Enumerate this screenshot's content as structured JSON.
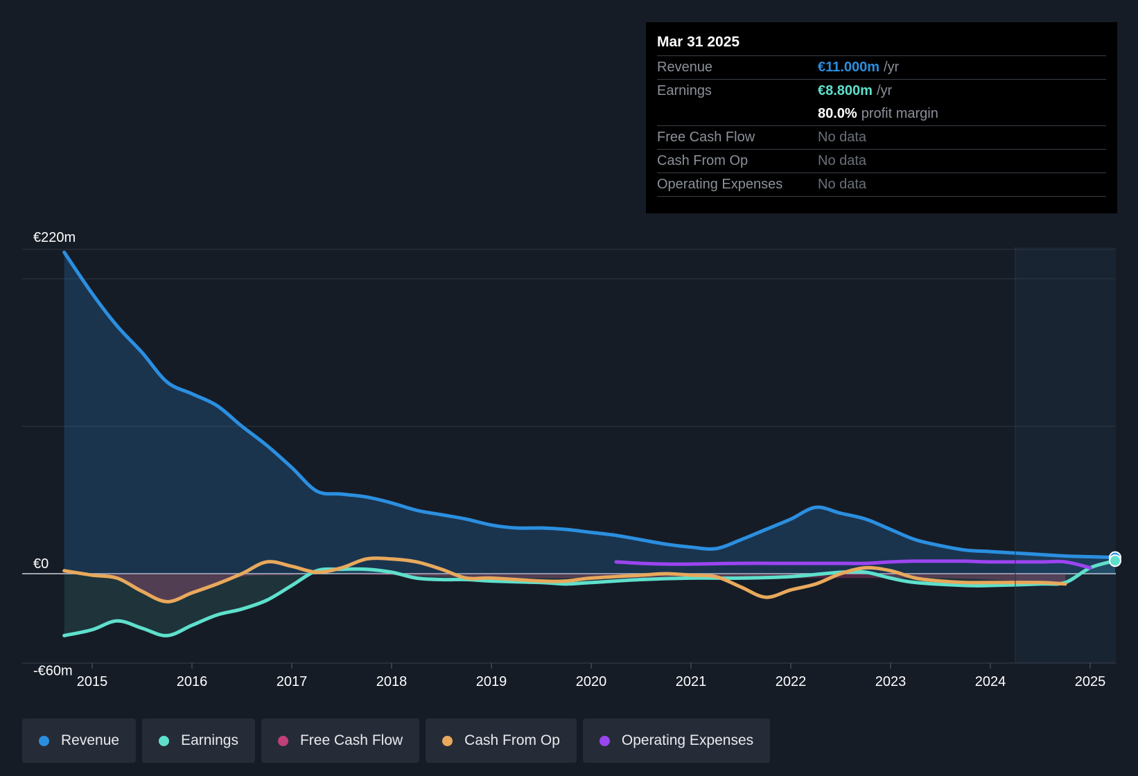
{
  "tooltip": {
    "date": "Mar 31 2025",
    "rows": {
      "revenue": {
        "label": "Revenue",
        "value": "€11.000m",
        "unit": "/yr"
      },
      "earnings": {
        "label": "Earnings",
        "value": "€8.800m",
        "unit": "/yr"
      },
      "margin": {
        "value": "80.0%",
        "unit": "profit margin"
      },
      "fcf": {
        "label": "Free Cash Flow",
        "value": "No data"
      },
      "cfo": {
        "label": "Cash From Op",
        "value": "No data"
      },
      "opex": {
        "label": "Operating Expenses",
        "value": "No data"
      }
    }
  },
  "legend": [
    {
      "label": "Revenue",
      "color": "#2b8fe0"
    },
    {
      "label": "Earnings",
      "color": "#5ee0cc"
    },
    {
      "label": "Free Cash Flow",
      "color": "#c0407a"
    },
    {
      "label": "Cash From Op",
      "color": "#e8a95c"
    },
    {
      "label": "Operating Expenses",
      "color": "#9b45f0"
    }
  ],
  "chart_data": {
    "type": "line",
    "title": "",
    "currency": "€",
    "ylim": [
      -60,
      220
    ],
    "y_tick_labels": [
      {
        "value": 220,
        "label": "€220m"
      },
      {
        "value": 0,
        "label": "€0"
      },
      {
        "value": -60,
        "label": "-€60m"
      }
    ],
    "xlim": [
      2014.5,
      2025.25
    ],
    "x_ticks": [
      2015,
      2016,
      2017,
      2018,
      2019,
      2020,
      2021,
      2022,
      2023,
      2024,
      2025
    ],
    "forecast_region_start": 2024.25,
    "series": [
      {
        "name": "Revenue",
        "color": "#2b8fe0",
        "fill": true,
        "points": [
          [
            2014.72,
            218
          ],
          [
            2015,
            190
          ],
          [
            2015.25,
            168
          ],
          [
            2015.5,
            150
          ],
          [
            2015.75,
            130
          ],
          [
            2016,
            122
          ],
          [
            2016.25,
            114
          ],
          [
            2016.5,
            100
          ],
          [
            2016.75,
            87
          ],
          [
            2017,
            72
          ],
          [
            2017.25,
            56
          ],
          [
            2017.5,
            54
          ],
          [
            2017.75,
            52
          ],
          [
            2018,
            48
          ],
          [
            2018.25,
            43
          ],
          [
            2018.5,
            40
          ],
          [
            2018.75,
            37
          ],
          [
            2019,
            33
          ],
          [
            2019.25,
            31
          ],
          [
            2019.5,
            31
          ],
          [
            2019.75,
            30
          ],
          [
            2020,
            28
          ],
          [
            2020.25,
            26
          ],
          [
            2020.5,
            23
          ],
          [
            2020.75,
            20
          ],
          [
            2021,
            18
          ],
          [
            2021.25,
            17
          ],
          [
            2021.5,
            23
          ],
          [
            2021.75,
            30
          ],
          [
            2022,
            37
          ],
          [
            2022.25,
            45
          ],
          [
            2022.5,
            41
          ],
          [
            2022.75,
            37
          ],
          [
            2023,
            30
          ],
          [
            2023.25,
            23
          ],
          [
            2023.5,
            19
          ],
          [
            2023.75,
            16
          ],
          [
            2024,
            15
          ],
          [
            2024.25,
            14
          ],
          [
            2024.5,
            13
          ],
          [
            2024.75,
            12
          ],
          [
            2025,
            11.5
          ],
          [
            2025.25,
            11
          ]
        ]
      },
      {
        "name": "Earnings",
        "color": "#5ee0cc",
        "fill": true,
        "points": [
          [
            2014.72,
            -42
          ],
          [
            2015,
            -38
          ],
          [
            2015.25,
            -32
          ],
          [
            2015.5,
            -37
          ],
          [
            2015.75,
            -42
          ],
          [
            2016,
            -35
          ],
          [
            2016.25,
            -28
          ],
          [
            2016.5,
            -24
          ],
          [
            2016.75,
            -18
          ],
          [
            2017,
            -8
          ],
          [
            2017.25,
            2
          ],
          [
            2017.5,
            3
          ],
          [
            2017.75,
            3
          ],
          [
            2018,
            1
          ],
          [
            2018.25,
            -3
          ],
          [
            2018.5,
            -4
          ],
          [
            2018.75,
            -4
          ],
          [
            2019,
            -5
          ],
          [
            2019.5,
            -6
          ],
          [
            2019.75,
            -7
          ],
          [
            2020,
            -6
          ],
          [
            2020.5,
            -4
          ],
          [
            2021,
            -3
          ],
          [
            2021.5,
            -3
          ],
          [
            2022,
            -2
          ],
          [
            2022.5,
            1
          ],
          [
            2022.75,
            1
          ],
          [
            2023,
            -3
          ],
          [
            2023.25,
            -6
          ],
          [
            2023.75,
            -8
          ],
          [
            2024,
            -8
          ],
          [
            2024.5,
            -7
          ],
          [
            2024.75,
            -6
          ],
          [
            2025,
            4
          ],
          [
            2025.25,
            8.8
          ]
        ]
      },
      {
        "name": "Free Cash Flow",
        "color": "#c0407a",
        "fill": true,
        "points": [
          [
            2014.72,
            2
          ],
          [
            2015,
            -1
          ],
          [
            2015.25,
            -3
          ],
          [
            2015.5,
            -12
          ],
          [
            2015.75,
            -18
          ],
          [
            2016,
            -12
          ],
          [
            2016.25,
            -7
          ],
          [
            2016.5,
            -2
          ],
          [
            2016.75,
            -1
          ],
          [
            2017,
            -1
          ],
          [
            2017.25,
            0
          ],
          [
            2018,
            -1
          ],
          [
            2018.5,
            -2
          ],
          [
            2019,
            -3
          ],
          [
            2019.5,
            -3
          ],
          [
            2020,
            -3
          ],
          [
            2020.5,
            -3
          ],
          [
            2021,
            -3
          ],
          [
            2021.5,
            -3
          ],
          [
            2022,
            -3
          ],
          [
            2022.5,
            -3
          ],
          [
            2023,
            -3
          ],
          [
            2023.5,
            -3
          ],
          [
            2024,
            -4
          ],
          [
            2024.5,
            -6
          ],
          [
            2024.75,
            -6
          ]
        ]
      },
      {
        "name": "Cash From Op",
        "color": "#e8a95c",
        "fill": false,
        "points": [
          [
            2014.72,
            2
          ],
          [
            2015,
            -1
          ],
          [
            2015.25,
            -3
          ],
          [
            2015.5,
            -12
          ],
          [
            2015.75,
            -19
          ],
          [
            2016,
            -13
          ],
          [
            2016.25,
            -7
          ],
          [
            2016.5,
            0
          ],
          [
            2016.75,
            8
          ],
          [
            2017,
            5
          ],
          [
            2017.25,
            1
          ],
          [
            2017.5,
            4
          ],
          [
            2017.75,
            10
          ],
          [
            2018,
            10
          ],
          [
            2018.25,
            8
          ],
          [
            2018.5,
            3
          ],
          [
            2018.75,
            -3
          ],
          [
            2019,
            -3
          ],
          [
            2019.5,
            -5
          ],
          [
            2019.75,
            -5
          ],
          [
            2020,
            -3
          ],
          [
            2020.5,
            -1
          ],
          [
            2020.75,
            0
          ],
          [
            2021,
            -1
          ],
          [
            2021.25,
            -2
          ],
          [
            2021.5,
            -9
          ],
          [
            2021.75,
            -16
          ],
          [
            2022,
            -11
          ],
          [
            2022.25,
            -7
          ],
          [
            2022.5,
            0
          ],
          [
            2022.75,
            4
          ],
          [
            2023,
            2
          ],
          [
            2023.25,
            -3
          ],
          [
            2023.5,
            -5
          ],
          [
            2023.75,
            -6
          ],
          [
            2024,
            -6
          ],
          [
            2024.5,
            -6
          ],
          [
            2024.75,
            -7
          ]
        ]
      },
      {
        "name": "Operating Expenses",
        "color": "#9b45f0",
        "fill": false,
        "points": [
          [
            2020.25,
            8
          ],
          [
            2020.5,
            7
          ],
          [
            2020.75,
            6.5
          ],
          [
            2021,
            6.5
          ],
          [
            2021.5,
            7
          ],
          [
            2022,
            7
          ],
          [
            2022.5,
            7
          ],
          [
            2022.75,
            7
          ],
          [
            2023,
            8
          ],
          [
            2023.25,
            8.5
          ],
          [
            2023.5,
            8.5
          ],
          [
            2023.75,
            8.5
          ],
          [
            2024,
            8
          ],
          [
            2024.5,
            8
          ],
          [
            2024.75,
            8
          ],
          [
            2025,
            4
          ]
        ]
      }
    ]
  }
}
